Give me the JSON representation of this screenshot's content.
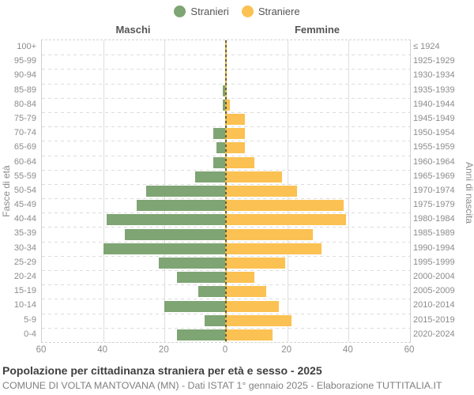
{
  "legend": {
    "male_label": "Stranieri",
    "female_label": "Straniere"
  },
  "headers": {
    "male": "Maschi",
    "female": "Femmine"
  },
  "axes": {
    "left_title": "Fasce di età",
    "right_title": "Anni di nascita",
    "x_tick_labels": [
      "60",
      "40",
      "20",
      "0",
      "20",
      "40",
      "60"
    ],
    "x_tick_values": [
      -60,
      -40,
      -20,
      0,
      20,
      40,
      60
    ]
  },
  "chart_data": {
    "type": "bar",
    "subtype": "population-pyramid",
    "title": "Popolazione per cittadinanza straniera per età e sesso - 2025",
    "xlim": [
      -60,
      60
    ],
    "grid": true,
    "legend_position": "top-center",
    "categories_age": [
      "100+",
      "95-99",
      "90-94",
      "85-89",
      "80-84",
      "75-79",
      "70-74",
      "65-69",
      "60-64",
      "55-59",
      "50-54",
      "45-49",
      "40-44",
      "35-39",
      "30-34",
      "25-29",
      "20-24",
      "15-19",
      "10-14",
      "5-9",
      "0-4"
    ],
    "categories_birth_years": [
      "≤ 1924",
      "1925-1929",
      "1930-1934",
      "1935-1939",
      "1940-1944",
      "1945-1949",
      "1950-1954",
      "1955-1959",
      "1960-1964",
      "1965-1969",
      "1970-1974",
      "1975-1979",
      "1980-1984",
      "1985-1989",
      "1990-1994",
      "1995-1999",
      "2000-2004",
      "2005-2009",
      "2010-2014",
      "2015-2019",
      "2020-2024"
    ],
    "series": [
      {
        "name": "Stranieri",
        "side": "male",
        "color": "#7EA573",
        "values": [
          0,
          0,
          0,
          1,
          1,
          0,
          4,
          3,
          4,
          10,
          26,
          29,
          39,
          33,
          40,
          22,
          16,
          9,
          20,
          7,
          16
        ]
      },
      {
        "name": "Straniere",
        "side": "female",
        "color": "#FBC152",
        "values": [
          0,
          0,
          0,
          0,
          1,
          6,
          6,
          6,
          9,
          18,
          23,
          38,
          39,
          28,
          31,
          19,
          9,
          13,
          17,
          21,
          15
        ]
      }
    ]
  },
  "colors": {
    "male": "#7EA573",
    "female": "#FBC152",
    "grid": "#DEDEDE",
    "axis_label": "#8C8C8C",
    "heading": "#555555",
    "centerline_dark": "#6B5D33",
    "centerline_light": "#E3BD4A"
  },
  "footer": {
    "title": "Popolazione per cittadinanza straniera per età e sesso - 2025",
    "subtitle": "COMUNE DI VOLTA MANTOVANA (MN) - Dati ISTAT 1° gennaio 2025 - Elaborazione TUTTITALIA.IT"
  }
}
